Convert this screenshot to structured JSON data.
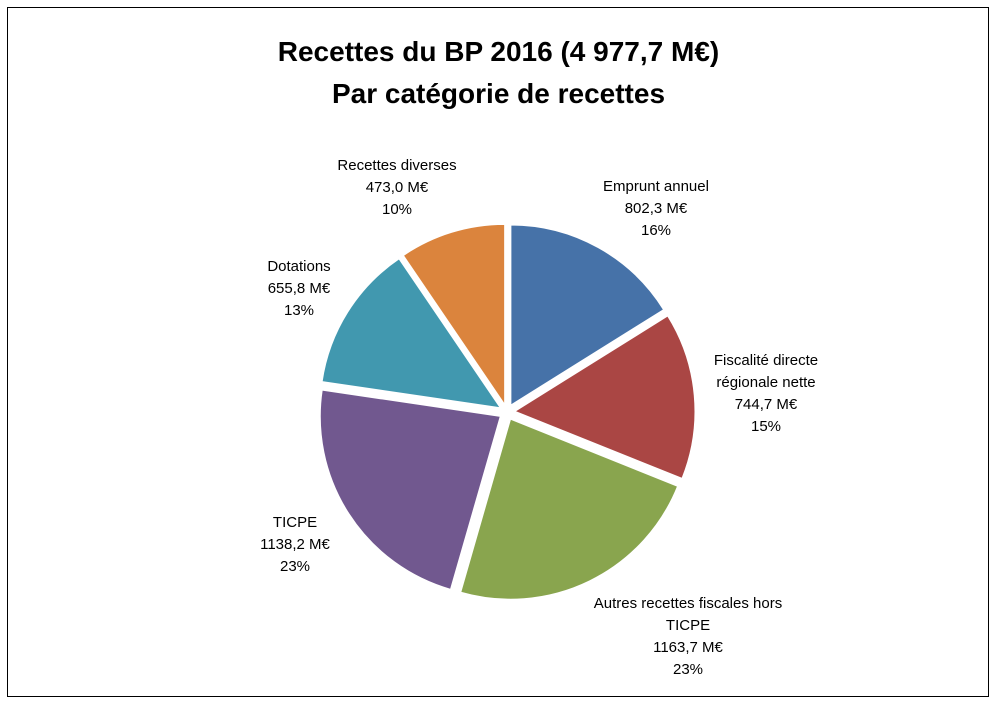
{
  "chart_data": {
    "type": "pie",
    "title": "Recettes du BP 2016 (4 977,7 M€)",
    "subtitle": "Par catégorie de recettes",
    "categories": [
      "Emprunt annuel",
      "Fiscalité directe régionale nette",
      "Autres recettes fiscales hors TICPE",
      "TICPE",
      "Dotations",
      "Recettes diverses"
    ],
    "values": [
      802.3,
      744.7,
      1163.7,
      1138.2,
      655.8,
      473.0
    ],
    "value_labels": [
      "802,3 M€",
      "744,7 M€",
      "1163,7 M€",
      "1138,2 M€",
      "655,8 M€",
      "473,0 M€"
    ],
    "percentages": [
      16,
      15,
      23,
      23,
      13,
      10
    ],
    "percentage_labels": [
      "16%",
      "15%",
      "23%",
      "23%",
      "13%",
      "10%"
    ],
    "colors": [
      "#4672a8",
      "#aa4644",
      "#89a54e",
      "#71588f",
      "#4198af",
      "#db843d"
    ]
  }
}
